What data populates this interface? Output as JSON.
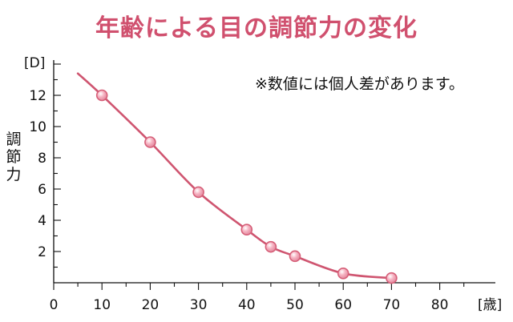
{
  "colors": {
    "accent": "#d0506e",
    "line": "#cf5570",
    "axis": "#111111",
    "marker_fill": "#f6b3c2",
    "marker_stroke": "#d65f78"
  },
  "chart_data": {
    "type": "line",
    "title": "年齢による目の調節力の変化",
    "note": "※数値には個人差があります。",
    "ylabel": "調節力",
    "y_unit": "[D]",
    "x_unit": "[歳]",
    "xlim": [
      0,
      90
    ],
    "ylim": [
      0,
      15
    ],
    "x_ticks": [
      "0",
      "10",
      "20",
      "30",
      "40",
      "50",
      "60",
      "70",
      "80"
    ],
    "y_ticks": [
      "2",
      "4",
      "6",
      "8",
      "10",
      "12"
    ],
    "series": [
      {
        "x": [
          5,
          10,
          20,
          30,
          40,
          45,
          50,
          60,
          70
        ],
        "y": [
          13.4,
          12.0,
          9.0,
          5.8,
          3.4,
          2.3,
          1.7,
          0.6,
          0.3
        ],
        "markers": [
          false,
          true,
          true,
          true,
          true,
          true,
          true,
          true,
          true
        ]
      }
    ],
    "grid": false
  }
}
